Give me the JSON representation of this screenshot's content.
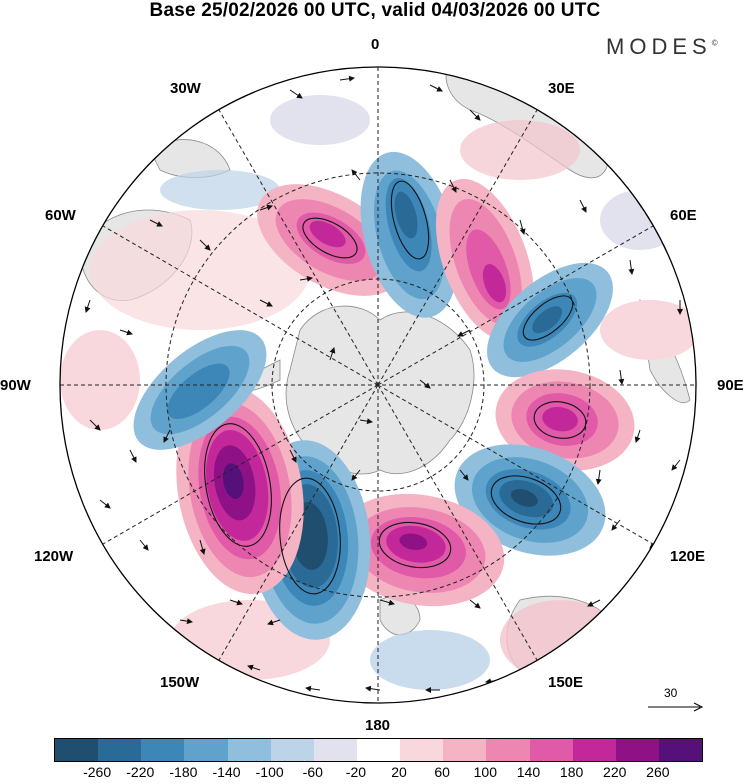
{
  "title": "Base 25/02/2026 00 UTC, valid 04/03/2026 00 UTC",
  "brand": "MODES",
  "brand_mark": "©",
  "labels": {
    "top": "0",
    "bottom": "180",
    "left": "90W",
    "right": "90E",
    "w30": "30W",
    "e30": "30E",
    "w60": "60W",
    "e60": "60E",
    "w120": "120W",
    "e120": "120E",
    "w150": "150W",
    "e150": "150E"
  },
  "reference_vector": {
    "label": "30"
  },
  "colorbar": {
    "colors": [
      "#1f4e6e",
      "#2a6a96",
      "#3d87b8",
      "#5fa3cd",
      "#8fbfdc",
      "#bcd3e8",
      "#e2e2ef",
      "#ffffff",
      "#f8d8dc",
      "#f4b4c4",
      "#ee86b2",
      "#e05aa8",
      "#c2289a",
      "#8e1286",
      "#55107a"
    ],
    "labels": [
      "-260",
      "-220",
      "-180",
      "-140",
      "-100",
      "-60",
      "-20",
      "20",
      "60",
      "100",
      "140",
      "180",
      "220",
      "260"
    ]
  }
}
